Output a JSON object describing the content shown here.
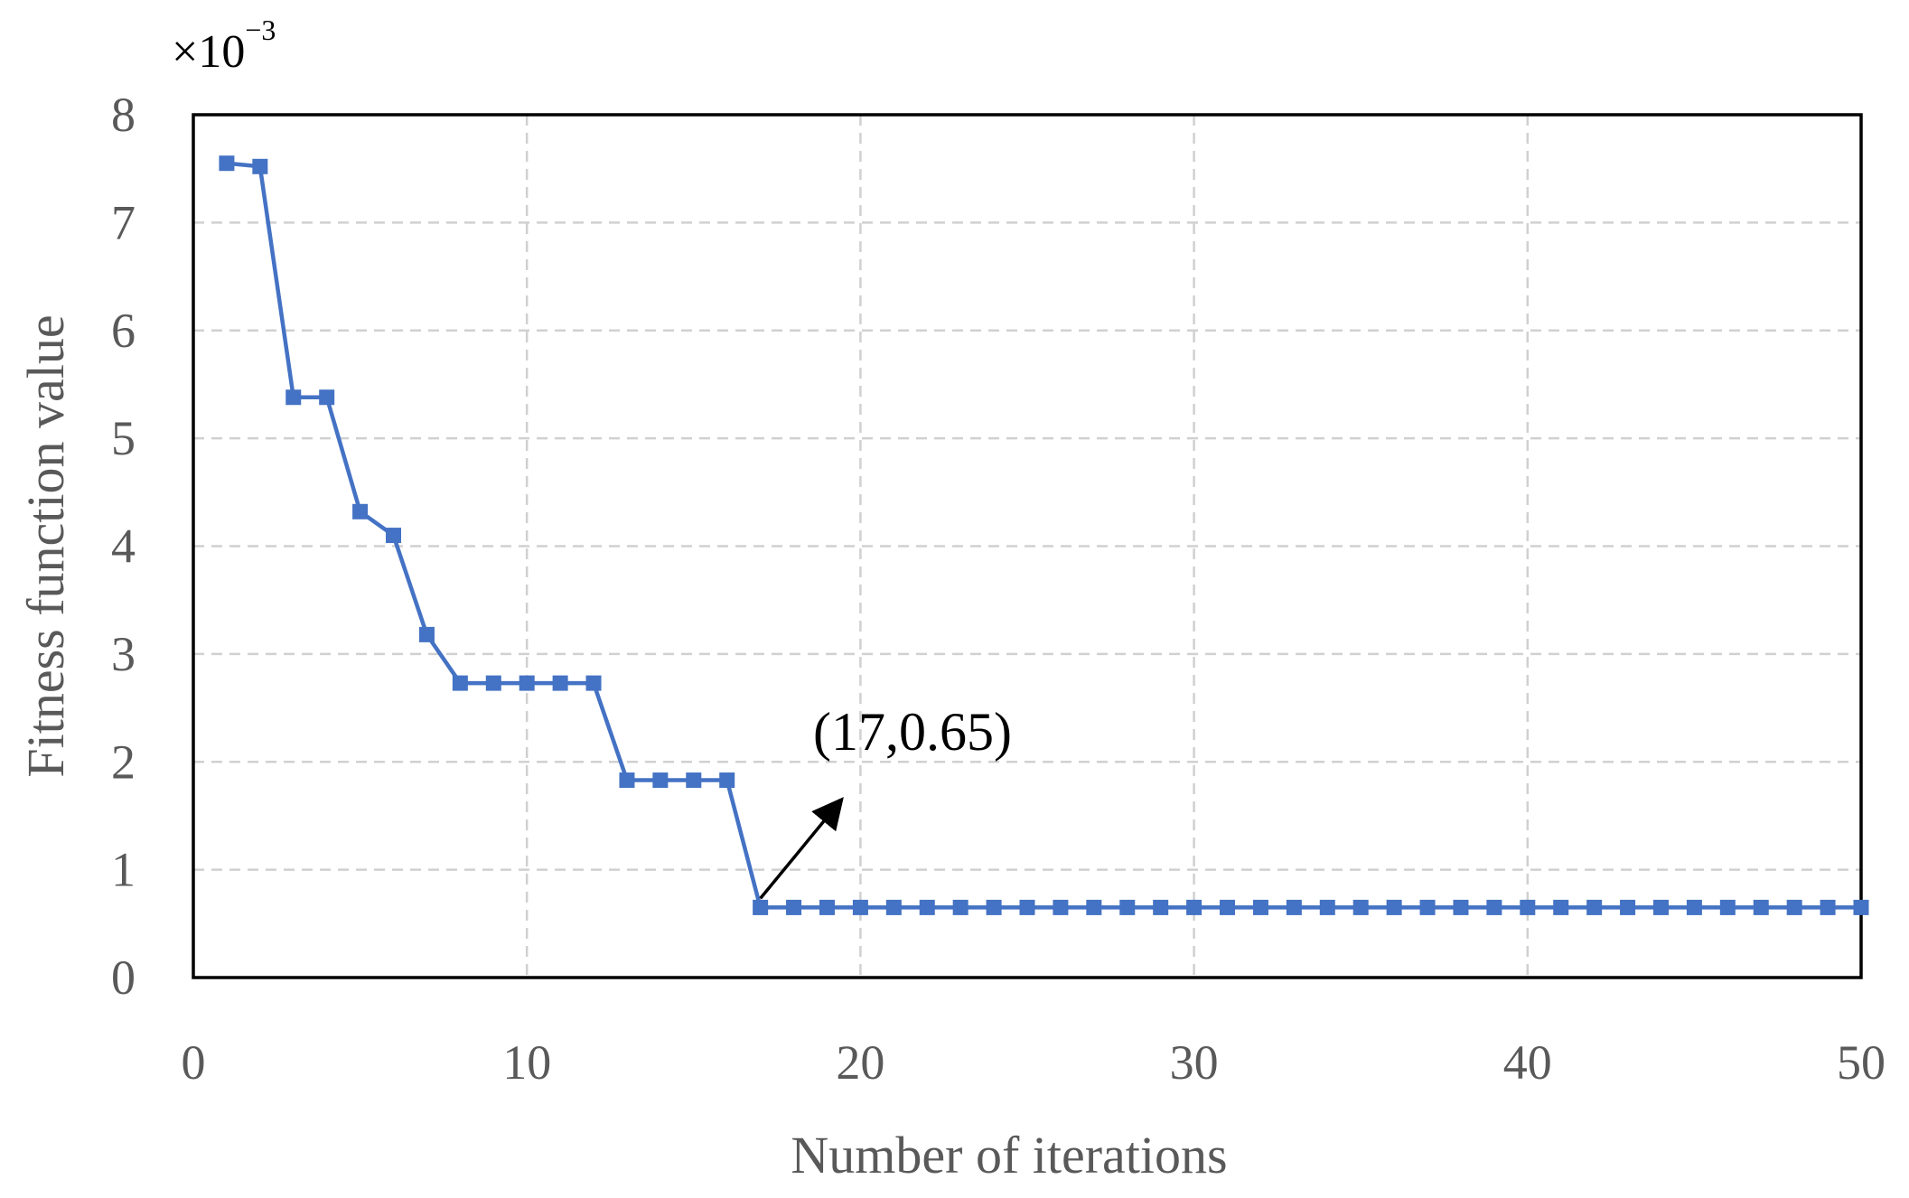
{
  "chart_data": {
    "type": "line",
    "title": "",
    "xlabel": "Number of iterations",
    "ylabel": "Fitness function value",
    "y_multiplier": "×10",
    "y_multiplier_exponent": "−3",
    "xlim": [
      0,
      50
    ],
    "ylim": [
      0,
      8
    ],
    "x_ticks": [
      0,
      10,
      20,
      30,
      40,
      50
    ],
    "y_ticks": [
      0,
      1,
      2,
      3,
      4,
      5,
      6,
      7,
      8
    ],
    "grid": true,
    "legend": "none",
    "series": [
      {
        "color": "#4472C4",
        "marker": "square",
        "x": [
          1,
          2,
          3,
          4,
          5,
          6,
          7,
          8,
          9,
          10,
          11,
          12,
          13,
          14,
          15,
          16,
          17,
          18,
          19,
          20,
          21,
          22,
          23,
          24,
          25,
          26,
          27,
          28,
          29,
          30,
          31,
          32,
          33,
          34,
          35,
          36,
          37,
          38,
          39,
          40,
          41,
          42,
          43,
          44,
          45,
          46,
          47,
          48,
          49,
          50
        ],
        "values": [
          7.55,
          7.52,
          5.38,
          5.38,
          4.32,
          4.1,
          3.18,
          2.73,
          2.73,
          2.73,
          2.73,
          2.73,
          1.83,
          1.83,
          1.83,
          1.83,
          0.65,
          0.65,
          0.65,
          0.65,
          0.65,
          0.65,
          0.65,
          0.65,
          0.65,
          0.65,
          0.65,
          0.65,
          0.65,
          0.65,
          0.65,
          0.65,
          0.65,
          0.65,
          0.65,
          0.65,
          0.65,
          0.65,
          0.65,
          0.65,
          0.65,
          0.65,
          0.65,
          0.65,
          0.65,
          0.65,
          0.65,
          0.65,
          0.65,
          0.65
        ]
      }
    ],
    "annotation": {
      "text": "(17,0.65)",
      "x": 17,
      "y": 0.65
    }
  }
}
